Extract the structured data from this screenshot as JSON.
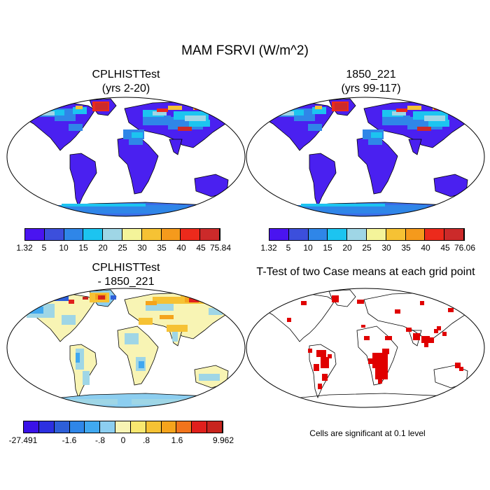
{
  "title": "MAM FSRVI (W/m^2)",
  "panels": {
    "top_left": {
      "title": "CPLHISTTest\n(yrs 2-20)"
    },
    "top_right": {
      "title": "1850_221\n(yrs 99-117)"
    },
    "bottom_left": {
      "title": "CPLHISTTest\n- 1850_221"
    },
    "bottom_right": {
      "title": "T-Test of two Case means at each grid point"
    }
  },
  "colorbars": {
    "top_left": {
      "colors": [
        "#4a14f0",
        "#3c4fdc",
        "#2f86e8",
        "#1cc4f0",
        "#9fd6e6",
        "#f4f49a",
        "#f6c234",
        "#f59a1c",
        "#ec2a1c",
        "#cc2a2a"
      ],
      "labels": [
        "1.32",
        "5",
        "10",
        "15",
        "20",
        "25",
        "30",
        "35",
        "40",
        "45",
        "75.84"
      ]
    },
    "top_right": {
      "colors": [
        "#4a14f0",
        "#3c4fdc",
        "#2f86e8",
        "#1cc4f0",
        "#9fd6e6",
        "#f4f49a",
        "#f6c234",
        "#f59a1c",
        "#ec2a1c",
        "#cc2a2a"
      ],
      "labels": [
        "1.32",
        "5",
        "10",
        "15",
        "20",
        "25",
        "30",
        "35",
        "40",
        "45",
        "76.06"
      ]
    },
    "bottom_left": {
      "colors": [
        "#3a12e8",
        "#2c30e0",
        "#2e5fd8",
        "#2f86e8",
        "#40a8f0",
        "#8ccef0",
        "#f8f4b4",
        "#f8e870",
        "#f6c234",
        "#f5a41c",
        "#f2741c",
        "#e0201c",
        "#c8241e"
      ],
      "labels": [
        "-27.491",
        "-1.6",
        "-.8",
        "0",
        ".8",
        "1.6",
        "9.962"
      ]
    }
  },
  "note": "Cells are significant at 0.1 level",
  "colors": {
    "ocean": "#ffffff",
    "land_base": "#4a20f0",
    "sig": "#e00000"
  }
}
